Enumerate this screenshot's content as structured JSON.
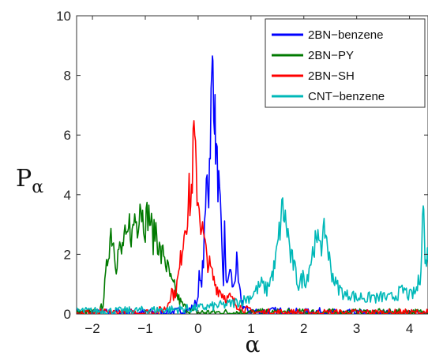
{
  "chart_data": {
    "type": "line",
    "title": "",
    "xlabel": "α",
    "ylabel_main": "P",
    "ylabel_sub": "α",
    "xlim": [
      -2.3,
      4.35
    ],
    "ylim": [
      0,
      10
    ],
    "xticks": [
      -2,
      -1,
      0,
      1,
      2,
      3,
      4
    ],
    "xtick_labels": [
      "−2",
      "−1",
      "0",
      "1",
      "2",
      "3",
      "4"
    ],
    "yticks": [
      0,
      2,
      4,
      6,
      8,
      10
    ],
    "ytick_labels": [
      "0",
      "2",
      "4",
      "6",
      "8",
      "10"
    ],
    "grid": false,
    "legend_position": "top-right",
    "series": [
      {
        "name": "2BN−benzene",
        "color": "#0000ff",
        "points": [
          [
            -2.3,
            0.05
          ],
          [
            -1.5,
            0.05
          ],
          [
            -0.8,
            0.05
          ],
          [
            -0.5,
            0.06
          ],
          [
            -0.35,
            0.1
          ],
          [
            -0.2,
            0.12
          ],
          [
            -0.1,
            0.2
          ],
          [
            -0.02,
            0.45
          ],
          [
            0.02,
            1.2
          ],
          [
            0.05,
            0.9
          ],
          [
            0.1,
            1.8
          ],
          [
            0.14,
            3.4
          ],
          [
            0.17,
            5.1
          ],
          [
            0.2,
            4.0
          ],
          [
            0.23,
            6.2
          ],
          [
            0.26,
            7.6
          ],
          [
            0.28,
            8.5
          ],
          [
            0.31,
            7.0
          ],
          [
            0.33,
            5.8
          ],
          [
            0.36,
            4.9
          ],
          [
            0.39,
            4.2
          ],
          [
            0.42,
            3.3
          ],
          [
            0.45,
            2.1
          ],
          [
            0.48,
            1.1
          ],
          [
            0.5,
            2.7
          ],
          [
            0.53,
            1.3
          ],
          [
            0.56,
            0.9
          ],
          [
            0.6,
            1.6
          ],
          [
            0.63,
            1.2
          ],
          [
            0.66,
            0.8
          ],
          [
            0.7,
            1.3
          ],
          [
            0.73,
            1.7
          ],
          [
            0.76,
            1.0
          ],
          [
            0.8,
            0.6
          ],
          [
            0.85,
            0.3
          ],
          [
            0.9,
            0.15
          ],
          [
            1.0,
            0.1
          ],
          [
            1.2,
            0.08
          ],
          [
            1.5,
            0.1
          ],
          [
            1.8,
            0.07
          ],
          [
            2.0,
            0.05
          ],
          [
            2.3,
            0.08
          ],
          [
            2.6,
            0.04
          ],
          [
            3.0,
            0.03
          ],
          [
            3.5,
            0.03
          ],
          [
            4.35,
            0.03
          ]
        ]
      },
      {
        "name": "2BN−PY",
        "color": "#007a00",
        "points": [
          [
            -2.3,
            0.05
          ],
          [
            -2.0,
            0.05
          ],
          [
            -1.85,
            0.1
          ],
          [
            -1.8,
            0.4
          ],
          [
            -1.75,
            1.2
          ],
          [
            -1.7,
            2.1
          ],
          [
            -1.65,
            2.8
          ],
          [
            -1.6,
            2.4
          ],
          [
            -1.55,
            1.7
          ],
          [
            -1.5,
            2.2
          ],
          [
            -1.45,
            2.0
          ],
          [
            -1.4,
            2.6
          ],
          [
            -1.35,
            2.3
          ],
          [
            -1.3,
            3.0
          ],
          [
            -1.25,
            2.6
          ],
          [
            -1.2,
            3.3
          ],
          [
            -1.15,
            3.0
          ],
          [
            -1.1,
            3.9
          ],
          [
            -1.05,
            3.3
          ],
          [
            -1.0,
            3.0
          ],
          [
            -0.95,
            3.4
          ],
          [
            -0.9,
            3.1
          ],
          [
            -0.85,
            2.5
          ],
          [
            -0.8,
            2.9
          ],
          [
            -0.75,
            2.3
          ],
          [
            -0.7,
            1.9
          ],
          [
            -0.65,
            2.1
          ],
          [
            -0.6,
            1.6
          ],
          [
            -0.55,
            1.4
          ],
          [
            -0.5,
            1.0
          ],
          [
            -0.45,
            0.9
          ],
          [
            -0.4,
            0.6
          ],
          [
            -0.35,
            0.45
          ],
          [
            -0.3,
            0.3
          ],
          [
            -0.2,
            0.15
          ],
          [
            -0.1,
            0.08
          ],
          [
            0.0,
            0.05
          ],
          [
            0.5,
            0.05
          ],
          [
            1.0,
            0.05
          ],
          [
            2.0,
            0.05
          ],
          [
            3.0,
            0.05
          ],
          [
            4.35,
            0.05
          ]
        ]
      },
      {
        "name": "2BN−SH",
        "color": "#ff0000",
        "points": [
          [
            -2.3,
            0.04
          ],
          [
            -1.0,
            0.05
          ],
          [
            -0.75,
            0.1
          ],
          [
            -0.6,
            0.2
          ],
          [
            -0.55,
            0.5
          ],
          [
            -0.5,
            0.8
          ],
          [
            -0.45,
            0.6
          ],
          [
            -0.4,
            1.0
          ],
          [
            -0.35,
            1.5
          ],
          [
            -0.3,
            2.3
          ],
          [
            -0.25,
            3.0
          ],
          [
            -0.2,
            3.4
          ],
          [
            -0.17,
            4.0
          ],
          [
            -0.14,
            3.6
          ],
          [
            -0.11,
            4.7
          ],
          [
            -0.08,
            6.1
          ],
          [
            -0.05,
            5.0
          ],
          [
            -0.02,
            4.2
          ],
          [
            0.02,
            3.6
          ],
          [
            0.05,
            3.1
          ],
          [
            0.1,
            2.6
          ],
          [
            0.15,
            2.0
          ],
          [
            0.2,
            1.7
          ],
          [
            0.25,
            1.4
          ],
          [
            0.3,
            1.1
          ],
          [
            0.35,
            0.9
          ],
          [
            0.4,
            0.8
          ],
          [
            0.45,
            0.7
          ],
          [
            0.5,
            0.6
          ],
          [
            0.55,
            0.5
          ],
          [
            0.6,
            0.55
          ],
          [
            0.65,
            0.45
          ],
          [
            0.7,
            0.35
          ],
          [
            0.75,
            0.3
          ],
          [
            0.8,
            0.25
          ],
          [
            0.9,
            0.15
          ],
          [
            1.0,
            0.08
          ],
          [
            1.2,
            0.05
          ],
          [
            2.0,
            0.04
          ],
          [
            4.35,
            0.04
          ]
        ]
      },
      {
        "name": "CNT−benzene",
        "color": "#00b8b8",
        "points": [
          [
            -2.3,
            0.1
          ],
          [
            -1.5,
            0.1
          ],
          [
            -0.5,
            0.15
          ],
          [
            0.0,
            0.2
          ],
          [
            0.5,
            0.3
          ],
          [
            0.85,
            0.45
          ],
          [
            1.0,
            0.6
          ],
          [
            1.1,
            0.8
          ],
          [
            1.2,
            1.0
          ],
          [
            1.3,
            0.8
          ],
          [
            1.35,
            1.1
          ],
          [
            1.4,
            1.3
          ],
          [
            1.45,
            1.6
          ],
          [
            1.5,
            2.2
          ],
          [
            1.55,
            2.9
          ],
          [
            1.6,
            3.6
          ],
          [
            1.65,
            3.1
          ],
          [
            1.7,
            2.7
          ],
          [
            1.75,
            1.9
          ],
          [
            1.8,
            1.7
          ],
          [
            1.85,
            1.3
          ],
          [
            1.9,
            1.0
          ],
          [
            1.95,
            1.1
          ],
          [
            2.0,
            1.3
          ],
          [
            2.05,
            1.1
          ],
          [
            2.1,
            1.6
          ],
          [
            2.15,
            1.9
          ],
          [
            2.2,
            2.4
          ],
          [
            2.25,
            2.2
          ],
          [
            2.3,
            2.8
          ],
          [
            2.35,
            2.2
          ],
          [
            2.4,
            2.9
          ],
          [
            2.45,
            2.3
          ],
          [
            2.5,
            1.6
          ],
          [
            2.55,
            1.3
          ],
          [
            2.6,
            1.0
          ],
          [
            2.7,
            0.8
          ],
          [
            2.8,
            0.6
          ],
          [
            2.9,
            0.7
          ],
          [
            3.0,
            0.5
          ],
          [
            3.1,
            0.6
          ],
          [
            3.2,
            0.5
          ],
          [
            3.3,
            0.6
          ],
          [
            3.4,
            0.5
          ],
          [
            3.5,
            0.6
          ],
          [
            3.6,
            0.5
          ],
          [
            3.7,
            0.6
          ],
          [
            3.8,
            0.7
          ],
          [
            3.9,
            0.8
          ],
          [
            4.0,
            0.6
          ],
          [
            4.1,
            0.7
          ],
          [
            4.15,
            0.9
          ],
          [
            4.2,
            1.3
          ],
          [
            4.23,
            2.2
          ],
          [
            4.26,
            3.9
          ],
          [
            4.28,
            2.6
          ],
          [
            4.31,
            1.6
          ],
          [
            4.33,
            2.1
          ],
          [
            4.35,
            1.8
          ]
        ]
      }
    ]
  }
}
